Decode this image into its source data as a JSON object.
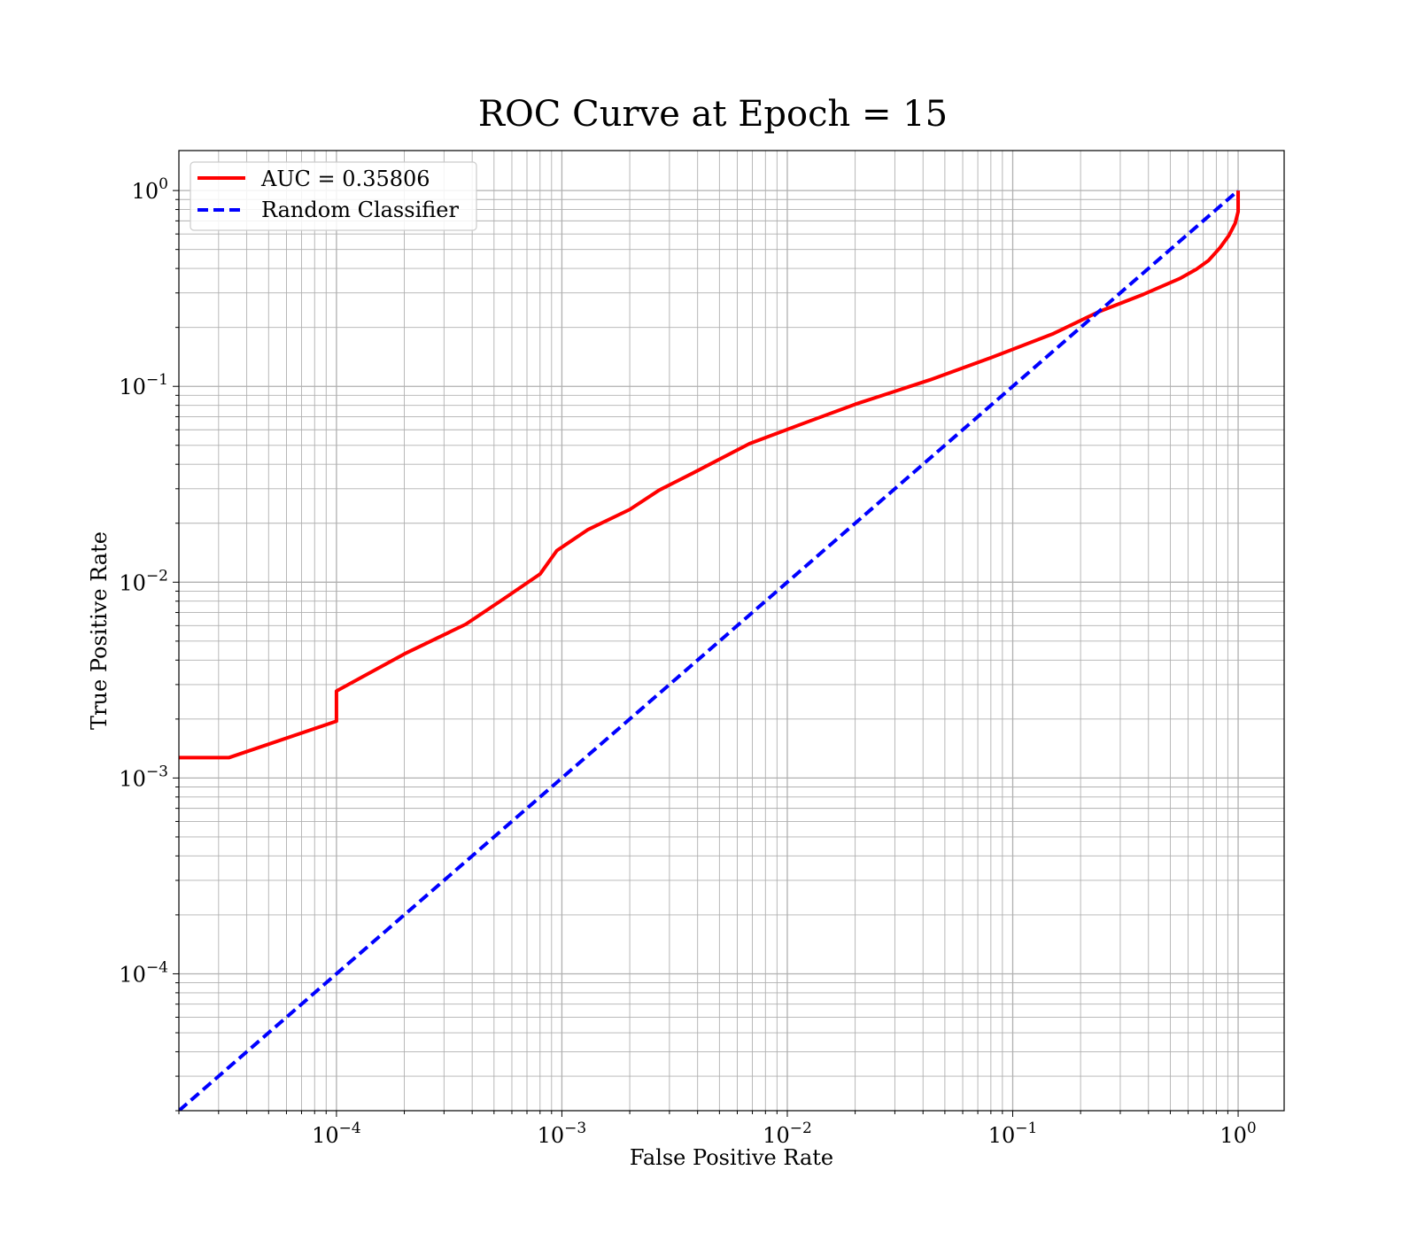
{
  "chart_data": {
    "type": "line",
    "title": "ROC Curve at Epoch = 15",
    "xlabel": "False Positive Rate",
    "ylabel": "True Positive Rate",
    "xscale": "log",
    "yscale": "log",
    "xlim": [
      2e-05,
      1.6
    ],
    "ylim": [
      2e-05,
      1.6
    ],
    "grid": "major and minor",
    "legend_position": "upper-left",
    "x_ticks": [
      {
        "value": 0.0001,
        "base": "10",
        "exp": "−4"
      },
      {
        "value": 0.001,
        "base": "10",
        "exp": "−3"
      },
      {
        "value": 0.01,
        "base": "10",
        "exp": "−2"
      },
      {
        "value": 0.1,
        "base": "10",
        "exp": "−1"
      },
      {
        "value": 1,
        "base": "10",
        "exp": "0"
      }
    ],
    "y_ticks": [
      {
        "value": 0.0001,
        "base": "10",
        "exp": "−4"
      },
      {
        "value": 0.001,
        "base": "10",
        "exp": "−3"
      },
      {
        "value": 0.01,
        "base": "10",
        "exp": "−2"
      },
      {
        "value": 0.1,
        "base": "10",
        "exp": "−1"
      },
      {
        "value": 1,
        "base": "10",
        "exp": "0"
      }
    ],
    "series": [
      {
        "name": "AUC = 0.35806",
        "color": "#ff0000",
        "style": "solid",
        "x": [
          2e-05,
          3.33e-05,
          0.0001,
          0.0001,
          0.0002,
          0.000375,
          0.00055,
          0.0008,
          0.00095,
          0.0013,
          0.002,
          0.0027,
          0.0038,
          0.0068,
          0.0115,
          0.02,
          0.043,
          0.08,
          0.15,
          0.24,
          0.38,
          0.55,
          0.65,
          0.74,
          0.83,
          0.91,
          0.97,
          1.0,
          1.0
        ],
        "y": [
          0.00127,
          0.00127,
          0.00195,
          0.00278,
          0.0043,
          0.0061,
          0.0082,
          0.011,
          0.0145,
          0.0185,
          0.0235,
          0.0295,
          0.036,
          0.051,
          0.064,
          0.081,
          0.108,
          0.14,
          0.185,
          0.24,
          0.295,
          0.355,
          0.395,
          0.44,
          0.51,
          0.59,
          0.68,
          0.78,
          1.0
        ]
      },
      {
        "name": "Random Classifier",
        "color": "#0000ff",
        "style": "dashed",
        "x": [
          2e-05,
          1.0
        ],
        "y": [
          2e-05,
          1.0
        ]
      }
    ]
  }
}
